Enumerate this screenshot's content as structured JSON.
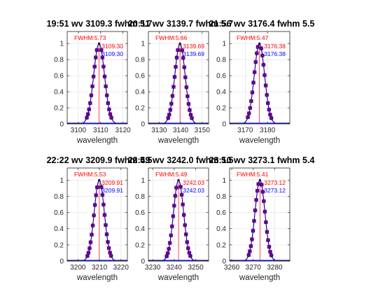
{
  "chart_data": [
    {
      "type": "line",
      "title": "19:51 wv   3109.3   fwhm 5.7",
      "xlabel": "wavelength",
      "xlim": [
        3095,
        3122
      ],
      "ylim": [
        0,
        1.15
      ],
      "xticks": [
        3100,
        3110,
        3120
      ],
      "yticks": [
        0,
        0.2,
        0.4,
        0.6,
        0.8,
        1
      ],
      "grid": true,
      "center": 3109.3,
      "fwhm": 5.73,
      "peak_x": 3109.3,
      "points_x": [
        3103.8,
        3104.3,
        3104.8,
        3105.3,
        3105.8,
        3106.3,
        3106.8,
        3107.3,
        3107.8,
        3108.3,
        3110.3,
        3110.8,
        3111.3,
        3111.8,
        3112.3,
        3112.8,
        3113.3,
        3113.8,
        3114.3,
        3114.8
      ],
      "annotations": {
        "fwhm_label": "FWHM:5.73",
        "red_value": "3109.30",
        "blue_value": "3109.30"
      }
    },
    {
      "type": "line",
      "title": "20:11 wv   3139.7   fwhm 5.7",
      "xlabel": "wavelength",
      "xlim": [
        3125,
        3153
      ],
      "ylim": [
        0,
        1.15
      ],
      "xticks": [
        3130,
        3140,
        3150
      ],
      "yticks": [
        0,
        0.2,
        0.4,
        0.6,
        0.8,
        1
      ],
      "grid": true,
      "center": 3139.69,
      "fwhm": 5.66,
      "peak_x": 3139.7,
      "points_x": [
        3134.2,
        3134.7,
        3135.2,
        3135.7,
        3136.2,
        3136.7,
        3137.2,
        3137.7,
        3138.2,
        3138.7,
        3140.7,
        3141.2,
        3141.7,
        3142.2,
        3142.7,
        3143.2,
        3143.7,
        3144.2,
        3144.7,
        3145.2
      ],
      "annotations": {
        "fwhm_label": "FWHM:5.66",
        "red_value": "3139.69",
        "blue_value": "3139.69"
      }
    },
    {
      "type": "line",
      "title": "21:56 wv   3176.4   fwhm 5.5",
      "xlabel": "wavelength",
      "xlim": [
        3163,
        3190
      ],
      "ylim": [
        0,
        1.15
      ],
      "xticks": [
        3170,
        3180
      ],
      "yticks": [
        0,
        0.2,
        0.4,
        0.6,
        0.8,
        1
      ],
      "grid": true,
      "center": 3176.38,
      "fwhm": 5.47,
      "peak_x": 3176.4,
      "points_x": [
        3171.2,
        3171.7,
        3172.2,
        3172.7,
        3173.2,
        3173.7,
        3174.2,
        3174.7,
        3175.2,
        3175.7,
        3177.2,
        3177.7,
        3178.2,
        3178.7,
        3179.2,
        3179.7,
        3180.2,
        3180.7,
        3181.2,
        3181.7
      ],
      "annotations": {
        "fwhm_label": "FWHM:5.47",
        "red_value": "3176.38",
        "blue_value": "3176.38"
      }
    },
    {
      "type": "line",
      "title": "22:22 wv   3209.9   fwhm 5.5",
      "xlabel": "wavelength",
      "xlim": [
        3195,
        3223
      ],
      "ylim": [
        0,
        1.15
      ],
      "xticks": [
        3200,
        3210,
        3220
      ],
      "yticks": [
        0,
        0.2,
        0.4,
        0.6,
        0.8,
        1
      ],
      "grid": true,
      "center": 3209.91,
      "fwhm": 5.53,
      "peak_x": 3209.9,
      "points_x": [
        3204.4,
        3204.9,
        3205.4,
        3205.9,
        3206.4,
        3206.9,
        3207.4,
        3207.9,
        3208.4,
        3208.9,
        3210.9,
        3211.4,
        3211.9,
        3212.4,
        3212.9,
        3213.4,
        3213.9,
        3214.4,
        3214.9,
        3215.4
      ],
      "annotations": {
        "fwhm_label": "FWHM:5.53",
        "red_value": "3209.91",
        "blue_value": "3209.91"
      }
    },
    {
      "type": "line",
      "title": "22:49 wv   3242.0   fwhm 5.5",
      "xlabel": "wavelength",
      "xlim": [
        3228,
        3256
      ],
      "ylim": [
        0,
        1.15
      ],
      "xticks": [
        3230,
        3240,
        3250
      ],
      "yticks": [
        0,
        0.2,
        0.4,
        0.6,
        0.8,
        1
      ],
      "grid": true,
      "center": 3242.03,
      "fwhm": 5.49,
      "peak_x": 3242.0,
      "points_x": [
        3236.5,
        3237.0,
        3237.5,
        3238.0,
        3238.5,
        3239.0,
        3239.5,
        3240.0,
        3240.5,
        3241.0,
        3243.0,
        3243.5,
        3244.0,
        3244.5,
        3245.0,
        3245.5,
        3246.0,
        3246.5,
        3247.0,
        3247.5
      ],
      "annotations": {
        "fwhm_label": "FWHM:5.49",
        "red_value": "3242.03",
        "blue_value": "3242.03"
      }
    },
    {
      "type": "line",
      "title": "23:10 wv   3273.1   fwhm 5.4",
      "xlabel": "wavelength",
      "xlim": [
        3259,
        3287
      ],
      "ylim": [
        0,
        1.15
      ],
      "xticks": [
        3260,
        3270,
        3280
      ],
      "yticks": [
        0,
        0.2,
        0.4,
        0.6,
        0.8,
        1
      ],
      "grid": true,
      "center": 3273.12,
      "fwhm": 5.41,
      "peak_x": 3273.1,
      "points_x": [
        3267.9,
        3268.4,
        3268.9,
        3269.4,
        3269.9,
        3270.4,
        3270.9,
        3271.4,
        3271.9,
        3272.4,
        3273.9,
        3274.4,
        3274.9,
        3275.4,
        3275.9,
        3276.4,
        3276.9,
        3277.4,
        3277.9,
        3278.4
      ],
      "annotations": {
        "fwhm_label": "FWHM:5.41",
        "red_value": "3273.12",
        "blue_value": "3273.12"
      }
    }
  ],
  "colors": {
    "curve": "#000080",
    "marker": "#0000ff",
    "marker_edge": "#cc0000",
    "red_text": "#ff0000",
    "blue_text": "#0000ff",
    "center_line": "#ff0000",
    "baseline": "#0000ff",
    "grid": "#dfdfdf"
  }
}
